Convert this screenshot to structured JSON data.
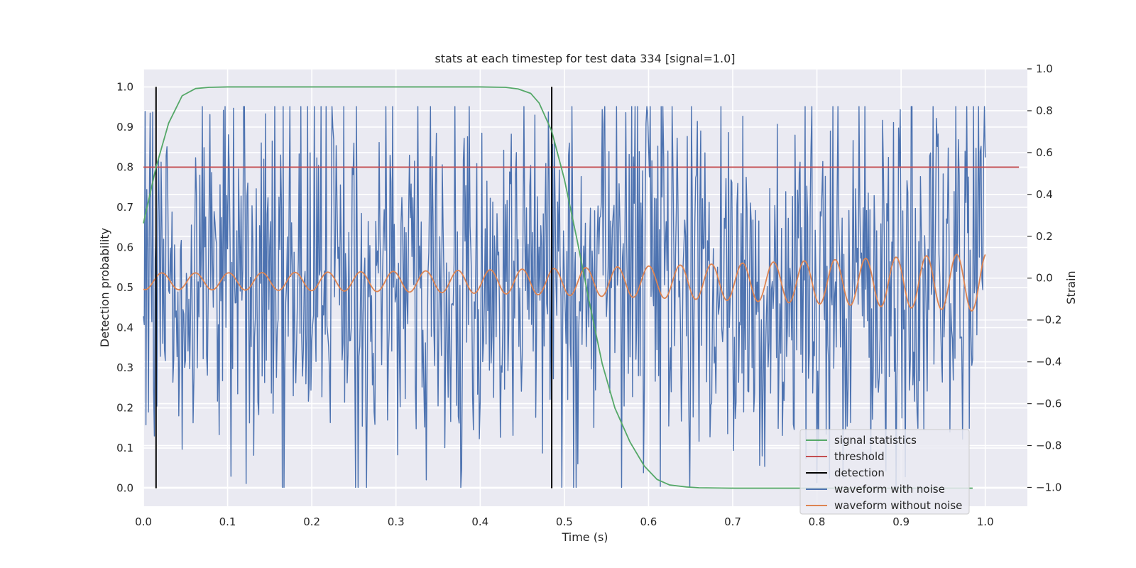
{
  "chart_data": {
    "type": "line",
    "title": "stats at each timestep for test data 334 [signal=1.0]",
    "xlabel": "Time (s)",
    "ylabel": "Detection probability",
    "y2label": "Strain",
    "xlim": [
      0.0,
      1.05
    ],
    "ylim": [
      -0.045,
      1.045
    ],
    "y2lim": [
      -1.09,
      1.0
    ],
    "xticks": [
      0.0,
      0.1,
      0.2,
      0.3,
      0.4,
      0.5,
      0.6,
      0.7,
      0.8,
      0.9,
      1.0
    ],
    "xtick_labels": [
      "0.0",
      "0.1",
      "0.2",
      "0.3",
      "0.4",
      "0.5",
      "0.6",
      "0.7",
      "0.8",
      "0.9",
      "1.0"
    ],
    "yticks": [
      0.0,
      0.1,
      0.2,
      0.3,
      0.4,
      0.5,
      0.6,
      0.7,
      0.8,
      0.9,
      1.0
    ],
    "ytick_labels": [
      "0.0",
      "0.1",
      "0.2",
      "0.3",
      "0.4",
      "0.5",
      "0.6",
      "0.7",
      "0.8",
      "0.9",
      "1.0"
    ],
    "y2ticks": [
      -1.0,
      -0.8,
      -0.6,
      -0.4,
      -0.2,
      0.0,
      0.2,
      0.4,
      0.6,
      0.8,
      1.0
    ],
    "y2tick_labels": [
      "−1.0",
      "−0.8",
      "−0.6",
      "−0.4",
      "−0.2",
      "0.0",
      "0.2",
      "0.4",
      "0.6",
      "0.8",
      "1.0"
    ],
    "grid": true,
    "legend_position": "lower-right",
    "colors": {
      "background": "#eaeaf2",
      "grid": "#ffffff",
      "signal": "#55a868",
      "threshold": "#c44e52",
      "detection": "#000000",
      "noisy": "#4c72b0",
      "clean": "#dd8452"
    },
    "series": [
      {
        "name": "signal statistics",
        "axis": "left",
        "x": [
          0.0,
          0.015,
          0.03,
          0.046,
          0.062,
          0.078,
          0.1,
          0.15,
          0.2,
          0.3,
          0.4,
          0.43,
          0.445,
          0.46,
          0.47,
          0.485,
          0.5,
          0.515,
          0.53,
          0.545,
          0.56,
          0.578,
          0.595,
          0.61,
          0.625,
          0.645,
          0.66,
          0.7,
          0.8,
          0.9,
          0.985
        ],
        "y": [
          0.66,
          0.8,
          0.91,
          0.978,
          0.996,
          0.999,
          1.0,
          1.0,
          1.0,
          1.0,
          1.0,
          0.999,
          0.995,
          0.984,
          0.96,
          0.89,
          0.77,
          0.62,
          0.46,
          0.31,
          0.2,
          0.115,
          0.055,
          0.022,
          0.008,
          0.003,
          0.001,
          0.0,
          0.0,
          0.0,
          0.0
        ]
      },
      {
        "name": "threshold",
        "axis": "left",
        "x": [
          0.0,
          1.04
        ],
        "y": [
          0.8,
          0.8
        ]
      },
      {
        "name": "detection",
        "axis": "left",
        "vlines": [
          0.015,
          0.485
        ],
        "ymin": 0.0,
        "ymax": 1.0
      },
      {
        "name": "waveform with noise",
        "axis": "right",
        "x_start": 0.0,
        "x_end": 1.0,
        "approx_amplitude": 1.0,
        "approx_peak": 0.82,
        "approx_trough": -1.0,
        "samples": 1000
      },
      {
        "name": "waveform without noise",
        "axis": "right",
        "x_start": 0.0,
        "x_end": 1.0,
        "cycles": 25,
        "amp_start": 0.04,
        "amp_end": 0.14,
        "offset_start": -0.015,
        "offset_end": -0.02
      }
    ],
    "legend": [
      "signal statistics",
      "threshold",
      "detection",
      "waveform with noise",
      "waveform without noise"
    ]
  }
}
